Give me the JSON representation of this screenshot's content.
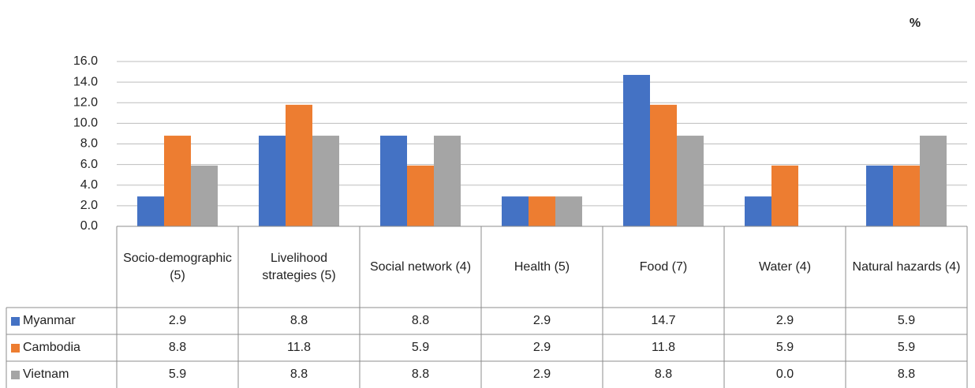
{
  "chart_data": {
    "type": "bar",
    "ylabel": "%",
    "categories": [
      "Socio-demographic (5)",
      "Livelihood strategies (5)",
      "Social network (4)",
      "Health (5)",
      "Food (7)",
      "Water (4)",
      "Natural hazards (4)"
    ],
    "series": [
      {
        "name": "Myanmar",
        "color": "#4472c4",
        "values": [
          2.9,
          8.8,
          8.8,
          2.9,
          14.7,
          2.9,
          5.9
        ]
      },
      {
        "name": "Cambodia",
        "color": "#ed7d31",
        "values": [
          8.8,
          11.8,
          5.9,
          2.9,
          11.8,
          5.9,
          5.9
        ]
      },
      {
        "name": "Vietnam",
        "color": "#a5a5a5",
        "values": [
          5.9,
          8.8,
          8.8,
          2.9,
          8.8,
          0,
          8.8
        ],
        "value_labels": [
          "5.9",
          "8.8",
          "8.8",
          "2.9",
          "8.8",
          "0.0",
          "8.8"
        ]
      }
    ],
    "ylim": [
      0,
      16
    ],
    "yticks": [
      {
        "value": 0,
        "label": "0.0"
      },
      {
        "value": 2,
        "label": "2.0"
      },
      {
        "value": 4,
        "label": "4.0"
      },
      {
        "value": 6,
        "label": "6.0"
      },
      {
        "value": 8,
        "label": "8.0"
      },
      {
        "value": 10,
        "label": "10.0"
      },
      {
        "value": 12,
        "label": "12.0"
      },
      {
        "value": 14,
        "label": "14.0"
      },
      {
        "value": 16,
        "label": "16.0"
      }
    ],
    "grid": true
  }
}
